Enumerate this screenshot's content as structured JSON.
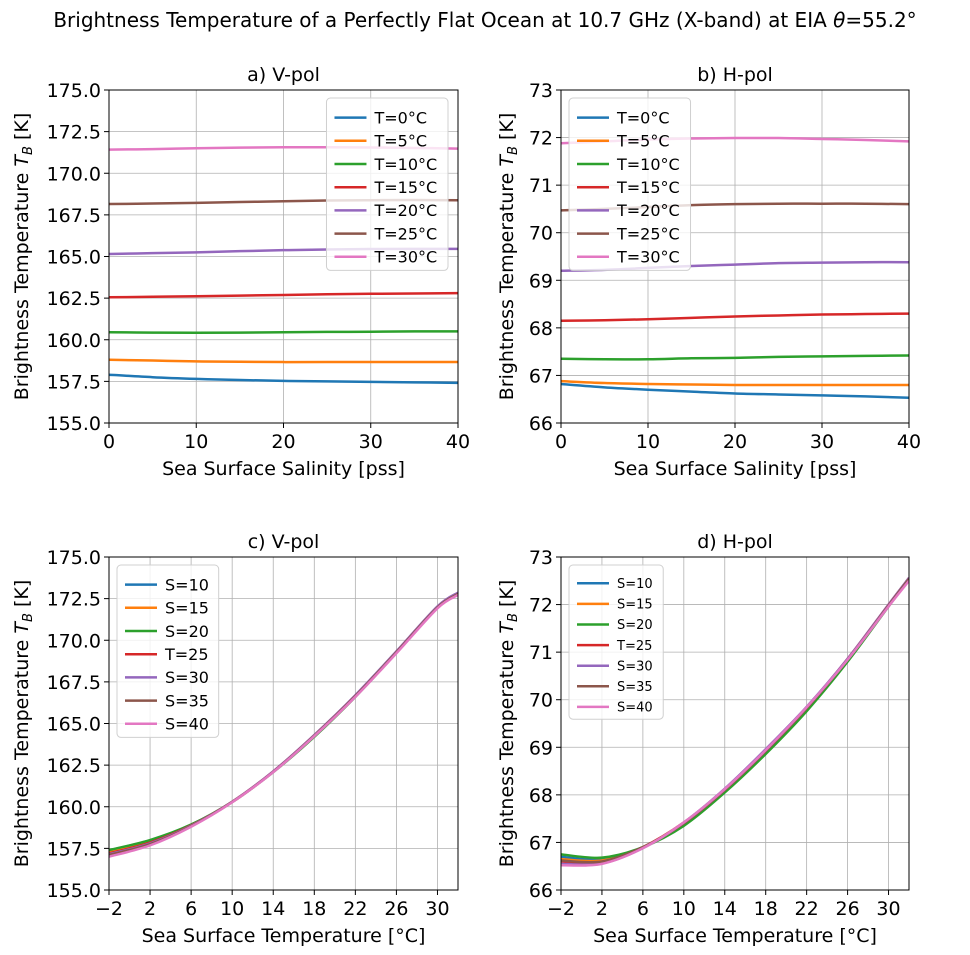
{
  "figure": {
    "title_text": "Brightness Temperature of a Perfectly Flat Ocean at 10.7 GHz (X-band) at EIA ",
    "title_theta": "θ",
    "title_suffix": "=55.2°"
  },
  "colors": {
    "c0": "#1f77b4",
    "c1": "#ff7f0e",
    "c2": "#2ca02c",
    "c3": "#d62728",
    "c4": "#9467bd",
    "c5": "#8c564b",
    "c6": "#e377c2",
    "grid": "#b0b0b0"
  },
  "chart_data": [
    {
      "type": "line",
      "title": "a) V-pol",
      "xlabel": "Sea Surface Salinity [pss]",
      "ylabel": "Brightness Temperature T_B [K]",
      "xlim": [
        0,
        40
      ],
      "ylim": [
        155.0,
        175.0
      ],
      "xticks": [
        0,
        10,
        20,
        30,
        40
      ],
      "xtick_labels": [
        "0",
        "10",
        "20",
        "30",
        "40"
      ],
      "yticks": [
        155.0,
        157.5,
        160.0,
        162.5,
        165.0,
        167.5,
        170.0,
        172.5,
        175.0
      ],
      "ytick_labels": [
        "155.0",
        "157.5",
        "160.0",
        "162.5",
        "165.0",
        "167.5",
        "170.0",
        "172.5",
        "175.0"
      ],
      "grid": true,
      "legend_position": "upper right",
      "x": [
        0,
        5,
        10,
        15,
        20,
        25,
        30,
        35,
        40
      ],
      "series": [
        {
          "name": "T=0°C",
          "values": [
            157.9,
            157.75,
            157.65,
            157.58,
            157.53,
            157.5,
            157.47,
            157.44,
            157.41
          ]
        },
        {
          "name": "T=5°C",
          "values": [
            158.8,
            158.75,
            158.7,
            158.68,
            158.66,
            158.66,
            158.66,
            158.66,
            158.66
          ]
        },
        {
          "name": "T=10°C",
          "values": [
            160.45,
            160.43,
            160.42,
            160.43,
            160.45,
            160.47,
            160.48,
            160.5,
            160.5
          ]
        },
        {
          "name": "T=15°C",
          "values": [
            162.55,
            162.58,
            162.61,
            162.65,
            162.69,
            162.73,
            162.76,
            162.78,
            162.8
          ]
        },
        {
          "name": "T=20°C",
          "values": [
            165.15,
            165.2,
            165.25,
            165.32,
            165.38,
            165.42,
            165.45,
            165.46,
            165.46
          ]
        },
        {
          "name": "T=25°C",
          "values": [
            168.15,
            168.18,
            168.22,
            168.27,
            168.32,
            168.36,
            168.38,
            168.39,
            168.38
          ]
        },
        {
          "name": "T=30°C",
          "values": [
            171.42,
            171.45,
            171.5,
            171.54,
            171.56,
            171.56,
            171.55,
            171.52,
            171.48
          ]
        }
      ]
    },
    {
      "type": "line",
      "title": "b) H-pol",
      "xlabel": "Sea Surface Salinity [pss]",
      "ylabel": "Brightness Temperature T_B [K]",
      "xlim": [
        0,
        40
      ],
      "ylim": [
        66,
        73
      ],
      "xticks": [
        0,
        10,
        20,
        30,
        40
      ],
      "xtick_labels": [
        "0",
        "10",
        "20",
        "30",
        "40"
      ],
      "yticks": [
        66,
        67,
        68,
        69,
        70,
        71,
        72,
        73
      ],
      "ytick_labels": [
        "66",
        "67",
        "68",
        "69",
        "70",
        "71",
        "72",
        "73"
      ],
      "grid": true,
      "legend_position": "upper left",
      "x": [
        0,
        5,
        10,
        15,
        20,
        25,
        30,
        35,
        40
      ],
      "series": [
        {
          "name": "T=0°C",
          "values": [
            66.82,
            66.75,
            66.7,
            66.66,
            66.62,
            66.6,
            66.58,
            66.56,
            66.53
          ]
        },
        {
          "name": "T=5°C",
          "values": [
            66.88,
            66.84,
            66.82,
            66.81,
            66.8,
            66.8,
            66.8,
            66.8,
            66.8
          ]
        },
        {
          "name": "T=10°C",
          "values": [
            67.35,
            67.34,
            67.34,
            67.36,
            67.37,
            67.39,
            67.4,
            67.41,
            67.42
          ]
        },
        {
          "name": "T=15°C",
          "values": [
            68.15,
            68.16,
            68.18,
            68.21,
            68.24,
            68.26,
            68.28,
            68.29,
            68.3
          ]
        },
        {
          "name": "T=20°C",
          "values": [
            69.2,
            69.22,
            69.26,
            69.3,
            69.33,
            69.36,
            69.37,
            69.38,
            69.38
          ]
        },
        {
          "name": "T=25°C",
          "values": [
            70.47,
            70.5,
            70.54,
            70.58,
            70.6,
            70.61,
            70.61,
            70.61,
            70.6
          ]
        },
        {
          "name": "T=30°C",
          "values": [
            71.88,
            71.92,
            71.96,
            71.98,
            71.99,
            71.99,
            71.97,
            71.95,
            71.92
          ]
        }
      ]
    },
    {
      "type": "line",
      "title": "c) V-pol",
      "xlabel": "Sea Surface Temperature  [°C]",
      "ylabel": "Brightness Temperature T_B [K]",
      "xlim": [
        -2,
        32
      ],
      "ylim": [
        155.0,
        175.0
      ],
      "xticks": [
        -2,
        2,
        6,
        10,
        14,
        18,
        22,
        26,
        30
      ],
      "xtick_labels": [
        "−2",
        "2",
        "6",
        "10",
        "14",
        "18",
        "22",
        "26",
        "30"
      ],
      "yticks": [
        155.0,
        157.5,
        160.0,
        162.5,
        165.0,
        167.5,
        170.0,
        172.5,
        175.0
      ],
      "ytick_labels": [
        "155.0",
        "157.5",
        "160.0",
        "162.5",
        "165.0",
        "167.5",
        "170.0",
        "172.5",
        "175.0"
      ],
      "grid": true,
      "legend_position": "upper left",
      "x": [
        -2,
        2,
        6,
        10,
        14,
        18,
        22,
        26,
        30,
        32
      ],
      "series": [
        {
          "name": "S=10",
          "values": [
            157.38,
            157.98,
            158.92,
            160.28,
            162.1,
            164.25,
            166.65,
            169.3,
            172.0,
            172.82
          ]
        },
        {
          "name": "S=15",
          "values": [
            157.3,
            157.9,
            158.9,
            160.28,
            162.1,
            164.25,
            166.64,
            169.28,
            171.98,
            172.8
          ]
        },
        {
          "name": "S=20",
          "values": [
            157.4,
            158.0,
            158.93,
            160.3,
            162.08,
            164.2,
            166.6,
            169.25,
            171.95,
            172.78
          ]
        },
        {
          "name": "T=25",
          "values": [
            157.2,
            157.85,
            158.88,
            160.3,
            162.12,
            164.3,
            166.68,
            169.32,
            172.02,
            172.85
          ]
        },
        {
          "name": "S=30",
          "values": [
            157.15,
            157.8,
            158.86,
            160.3,
            162.13,
            164.31,
            166.7,
            169.33,
            172.03,
            172.86
          ]
        },
        {
          "name": "S=35",
          "values": [
            157.1,
            157.75,
            158.83,
            160.28,
            162.1,
            164.27,
            166.65,
            169.28,
            171.97,
            172.78
          ]
        },
        {
          "name": "S=40",
          "values": [
            157.0,
            157.68,
            158.8,
            160.27,
            162.08,
            164.24,
            166.6,
            169.22,
            171.92,
            172.72
          ]
        }
      ]
    },
    {
      "type": "line",
      "title": "d) H-pol",
      "xlabel": "Sea Surface Temperature  [°C]",
      "ylabel": "Brightness Temperature T_B [K]",
      "xlim": [
        -2,
        32
      ],
      "ylim": [
        66,
        73
      ],
      "xticks": [
        -2,
        2,
        6,
        10,
        14,
        18,
        22,
        26,
        30
      ],
      "xtick_labels": [
        "−2",
        "2",
        "6",
        "10",
        "14",
        "18",
        "22",
        "26",
        "30"
      ],
      "yticks": [
        66,
        67,
        68,
        69,
        70,
        71,
        72,
        73
      ],
      "ytick_labels": [
        "66",
        "67",
        "68",
        "69",
        "70",
        "71",
        "72",
        "73"
      ],
      "grid": true,
      "legend_position": "upper left",
      "x": [
        -2,
        2,
        6,
        10,
        14,
        18,
        22,
        26,
        30,
        32
      ],
      "series": [
        {
          "name": "S=10",
          "values": [
            66.7,
            66.64,
            66.9,
            67.4,
            68.1,
            68.92,
            69.8,
            70.82,
            71.98,
            72.55
          ]
        },
        {
          "name": "S=15",
          "values": [
            66.65,
            66.62,
            66.9,
            67.4,
            68.1,
            68.92,
            69.8,
            70.82,
            71.98,
            72.55
          ]
        },
        {
          "name": "S=20",
          "values": [
            66.75,
            66.68,
            66.9,
            67.35,
            68.05,
            68.86,
            69.76,
            70.8,
            71.96,
            72.52
          ]
        },
        {
          "name": "T=25",
          "values": [
            66.6,
            66.58,
            66.9,
            67.42,
            68.12,
            68.95,
            69.84,
            70.86,
            72.0,
            72.56
          ]
        },
        {
          "name": "S=30",
          "values": [
            66.55,
            66.56,
            66.88,
            67.42,
            68.13,
            68.96,
            69.85,
            70.86,
            72.0,
            72.56
          ]
        },
        {
          "name": "S=35",
          "values": [
            66.62,
            66.6,
            66.9,
            67.4,
            68.1,
            68.92,
            69.82,
            70.84,
            71.98,
            72.54
          ]
        },
        {
          "name": "S=40",
          "values": [
            66.52,
            66.55,
            66.88,
            67.42,
            68.12,
            68.94,
            69.84,
            70.84,
            71.96,
            72.5
          ]
        }
      ]
    }
  ]
}
